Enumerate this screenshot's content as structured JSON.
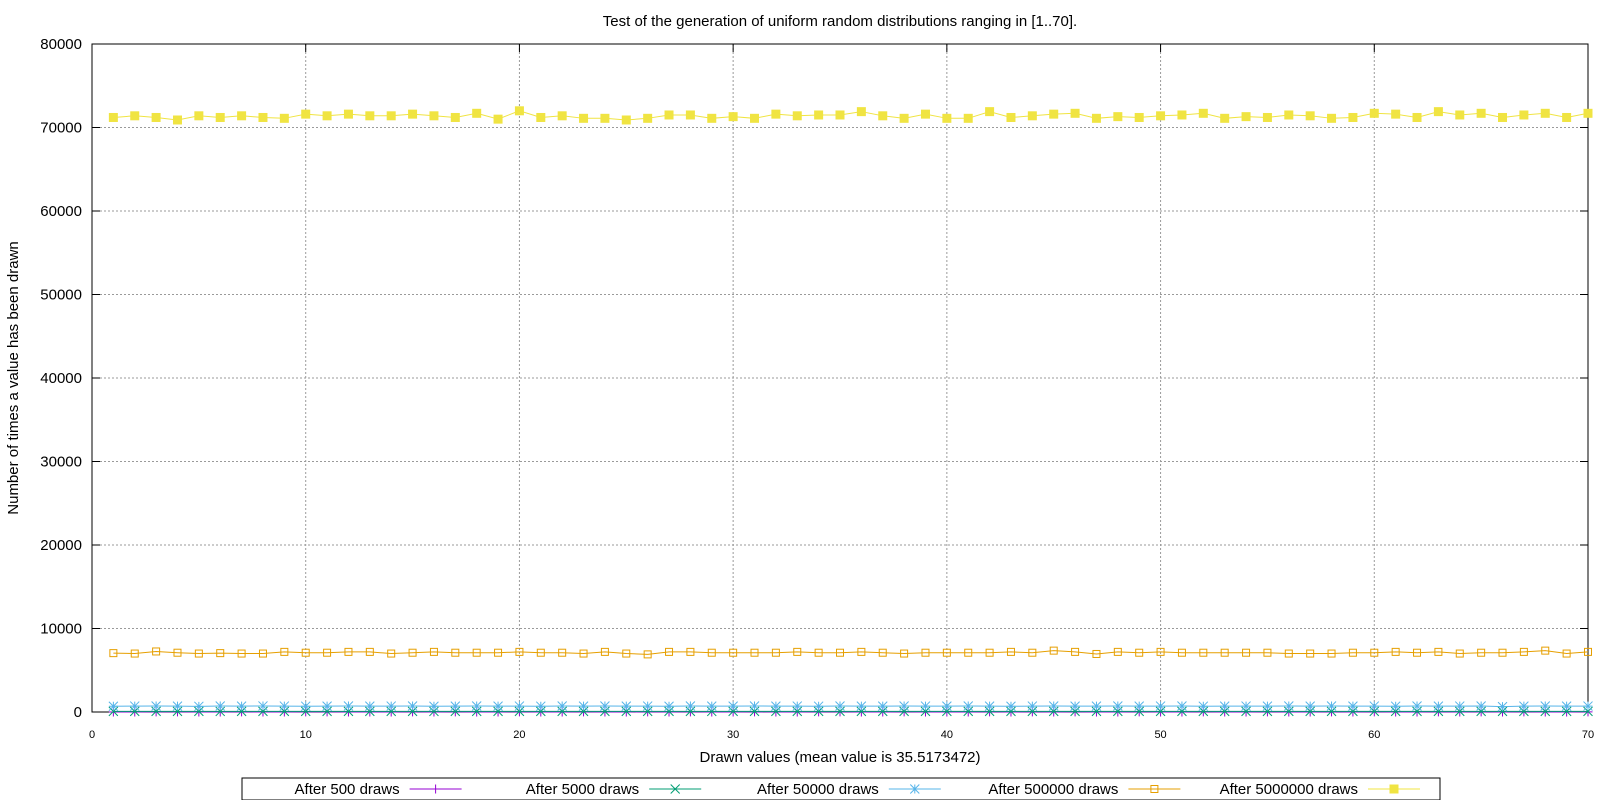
{
  "chart_data": {
    "type": "line",
    "title": "Test of the generation of uniform random distributions ranging in [1..70].",
    "xlabel": "Drawn values (mean value is 35.5173472)",
    "ylabel": "Number of times a value has been drawn",
    "xlim": [
      0,
      70
    ],
    "ylim": [
      0,
      80000
    ],
    "x_ticks": [
      0,
      10,
      20,
      30,
      40,
      50,
      60,
      70
    ],
    "y_ticks": [
      0,
      10000,
      20000,
      30000,
      40000,
      50000,
      60000,
      70000,
      80000
    ],
    "grid": true,
    "legend_position": "bottom-center",
    "x": [
      1,
      2,
      3,
      4,
      5,
      6,
      7,
      8,
      9,
      10,
      11,
      12,
      13,
      14,
      15,
      16,
      17,
      18,
      19,
      20,
      21,
      22,
      23,
      24,
      25,
      26,
      27,
      28,
      29,
      30,
      31,
      32,
      33,
      34,
      35,
      36,
      37,
      38,
      39,
      40,
      41,
      42,
      43,
      44,
      45,
      46,
      47,
      48,
      49,
      50,
      51,
      52,
      53,
      54,
      55,
      56,
      57,
      58,
      59,
      60,
      61,
      62,
      63,
      64,
      65,
      66,
      67,
      68,
      69,
      70
    ],
    "series": [
      {
        "name": "After 500 draws",
        "color": "#9400d3",
        "marker": "plus",
        "values": [
          7,
          6,
          9,
          8,
          7,
          5,
          8,
          6,
          7,
          8,
          9,
          7,
          6,
          7,
          8,
          5,
          9,
          3,
          7,
          8,
          6,
          7,
          8,
          7,
          6,
          9,
          7,
          8,
          4,
          7,
          8,
          6,
          7,
          9,
          8,
          7,
          6,
          8,
          7,
          5,
          7,
          8,
          6,
          9,
          7,
          8,
          6,
          7,
          8,
          5,
          7,
          9,
          6,
          7,
          8,
          7,
          6,
          8,
          7,
          9,
          6,
          7,
          8,
          7,
          9,
          3,
          8,
          7,
          6,
          8
        ]
      },
      {
        "name": "After 5000 draws",
        "color": "#009e73",
        "marker": "cross",
        "values": [
          72,
          71,
          73,
          70,
          72,
          69,
          71,
          74,
          70,
          72,
          71,
          73,
          70,
          72,
          71,
          69,
          73,
          72,
          70,
          71,
          74,
          72,
          70,
          71,
          73,
          72,
          70,
          71,
          69,
          72,
          73,
          71,
          70,
          72,
          71,
          73,
          72,
          70,
          71,
          72,
          74,
          70,
          71,
          72,
          73,
          71,
          70,
          72,
          71,
          73,
          72,
          70,
          71,
          72,
          70,
          73,
          71,
          72,
          70,
          71,
          72,
          73,
          70,
          72,
          71,
          70,
          72,
          73,
          71,
          70
        ]
      },
      {
        "name": "After 50000 draws",
        "color": "#56b4e9",
        "marker": "star",
        "values": [
          690,
          710,
          720,
          705,
          680,
          715,
          700,
          725,
          710,
          695,
          705,
          720,
          700,
          710,
          715,
          690,
          705,
          720,
          700,
          710,
          695,
          715,
          700,
          720,
          705,
          710,
          690,
          715,
          700,
          705,
          720,
          700,
          710,
          695,
          715,
          700,
          705,
          720,
          710,
          700,
          715,
          705,
          690,
          710,
          720,
          700,
          705,
          715,
          700,
          710,
          720,
          695,
          705,
          710,
          700,
          715,
          705,
          720,
          700,
          710,
          695,
          715,
          700,
          710,
          720,
          640,
          705,
          715,
          700,
          710
        ]
      },
      {
        "name": "After 500000 draws",
        "color": "#e69f00",
        "marker": "square-open",
        "values": [
          7050,
          7000,
          7250,
          7100,
          7000,
          7050,
          7000,
          7000,
          7200,
          7100,
          7100,
          7200,
          7200,
          7000,
          7100,
          7200,
          7100,
          7100,
          7100,
          7200,
          7100,
          7100,
          7000,
          7200,
          7000,
          6900,
          7200,
          7200,
          7100,
          7100,
          7100,
          7100,
          7200,
          7100,
          7100,
          7200,
          7100,
          7000,
          7100,
          7100,
          7100,
          7100,
          7200,
          7100,
          7350,
          7200,
          6950,
          7200,
          7100,
          7200,
          7100,
          7100,
          7100,
          7100,
          7100,
          7000,
          7000,
          7000,
          7100,
          7100,
          7200,
          7100,
          7200,
          7000,
          7100,
          7100,
          7200,
          7350,
          7000,
          7200
        ]
      },
      {
        "name": "After 5000000 draws",
        "color": "#f0e442",
        "marker": "square-filled",
        "values": [
          71200,
          71400,
          71200,
          70900,
          71400,
          71200,
          71400,
          71200,
          71100,
          71600,
          71400,
          71600,
          71400,
          71400,
          71600,
          71400,
          71200,
          71700,
          71000,
          72000,
          71200,
          71400,
          71100,
          71100,
          70900,
          71100,
          71500,
          71500,
          71100,
          71300,
          71100,
          71600,
          71400,
          71500,
          71500,
          71900,
          71400,
          71100,
          71600,
          71100,
          71100,
          71900,
          71200,
          71400,
          71600,
          71700,
          71100,
          71300,
          71200,
          71400,
          71500,
          71700,
          71100,
          71300,
          71200,
          71500,
          71400,
          71100,
          71200,
          71700,
          71600,
          71200,
          71900,
          71500,
          71700,
          71200,
          71500,
          71700,
          71200,
          71700
        ]
      }
    ]
  }
}
